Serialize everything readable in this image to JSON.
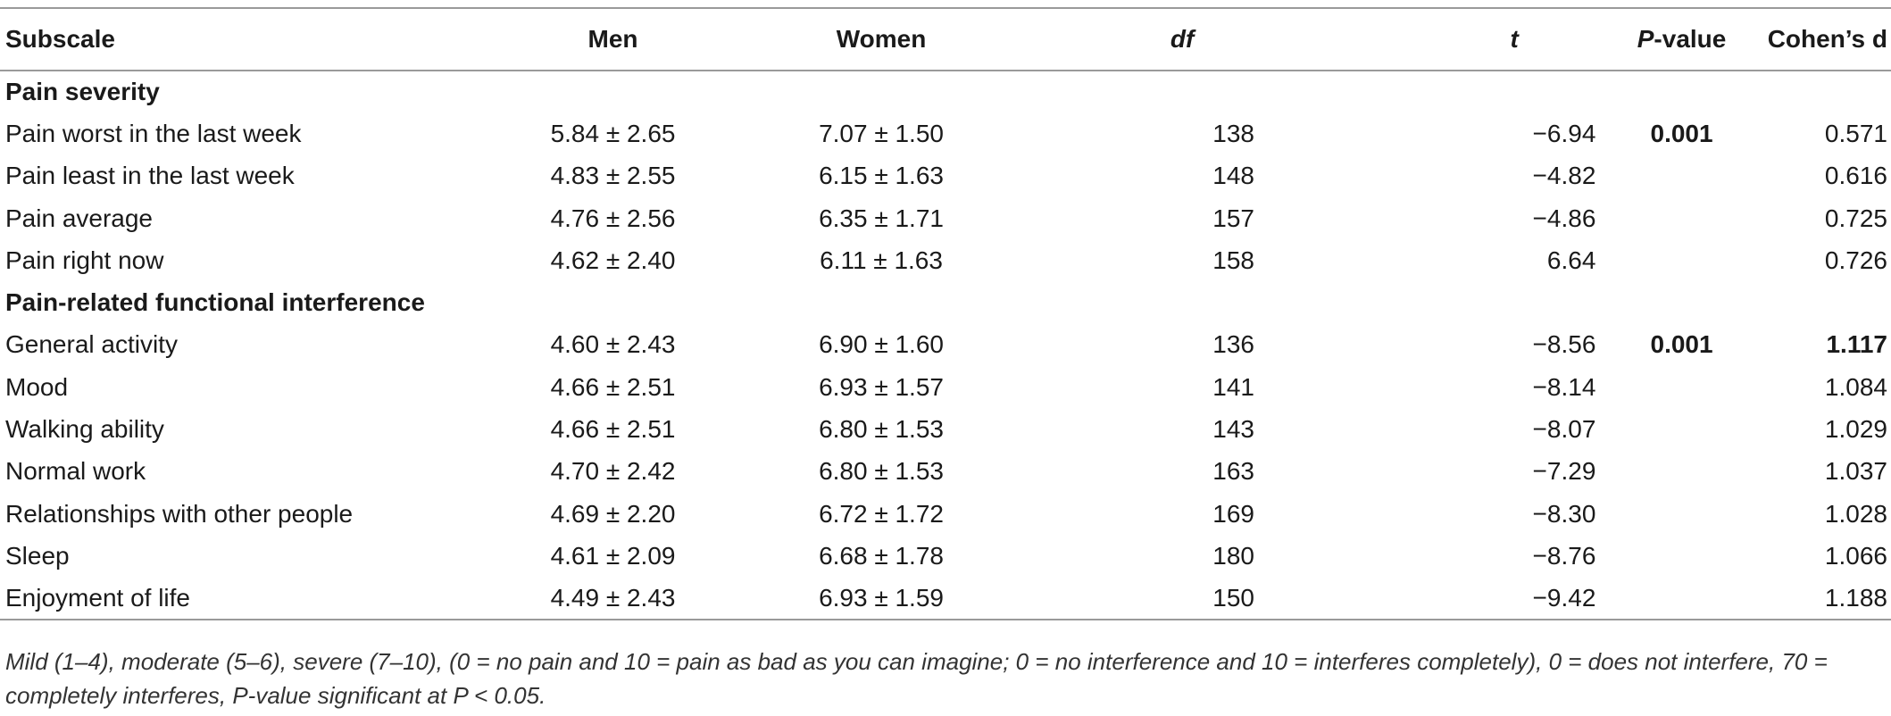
{
  "headers": {
    "subscale": "Subscale",
    "men": "Men",
    "women": "Women",
    "df": "df",
    "t": "t",
    "p_italic": "P",
    "p_rest": "-value",
    "cohens_d": "Cohen’s d"
  },
  "sections": [
    {
      "title": "Pain severity",
      "rows": [
        {
          "subscale": "Pain worst in the last week",
          "men": "5.84 ± 2.65",
          "women": "7.07 ± 1.50",
          "df": "138",
          "t": "−6.94",
          "p": "0.001",
          "d": "0.571"
        },
        {
          "subscale": "Pain least in the last week",
          "men": "4.83 ± 2.55",
          "women": "6.15 ± 1.63",
          "df": "148",
          "t": "−4.82",
          "p": "",
          "d": "0.616"
        },
        {
          "subscale": "Pain average",
          "men": "4.76 ± 2.56",
          "women": "6.35 ± 1.71",
          "df": "157",
          "t": "−4.86",
          "p": "",
          "d": "0.725"
        },
        {
          "subscale": "Pain right now",
          "men": "4.62 ± 2.40",
          "women": "6.11 ± 1.63",
          "df": "158",
          "t": "6.64",
          "p": "",
          "d": "0.726"
        }
      ]
    },
    {
      "title": "Pain-related functional interference",
      "rows": [
        {
          "subscale": "General activity",
          "men": "4.60 ± 2.43",
          "women": "6.90 ± 1.60",
          "df": "136",
          "t": "−8.56",
          "p": "0.001",
          "d": "1.117"
        },
        {
          "subscale": "Mood",
          "men": "4.66 ± 2.51",
          "women": "6.93 ± 1.57",
          "df": "141",
          "t": "−8.14",
          "p": "",
          "d": "1.084"
        },
        {
          "subscale": "Walking ability",
          "men": "4.66 ± 2.51",
          "women": "6.80 ± 1.53",
          "df": "143",
          "t": "−8.07",
          "p": "",
          "d": "1.029"
        },
        {
          "subscale": "Normal work",
          "men": "4.70 ± 2.42",
          "women": "6.80 ± 1.53",
          "df": "163",
          "t": "−7.29",
          "p": "",
          "d": "1.037"
        },
        {
          "subscale": "Relationships with other people",
          "men": "4.69 ± 2.20",
          "women": "6.72 ± 1.72",
          "df": "169",
          "t": "−8.30",
          "p": "",
          "d": "1.028"
        },
        {
          "subscale": "Sleep",
          "men": "4.61 ± 2.09",
          "women": "6.68 ± 1.78",
          "df": "180",
          "t": "−8.76",
          "p": "",
          "d": "1.066"
        },
        {
          "subscale": "Enjoyment of life",
          "men": "4.49 ± 2.43",
          "women": "6.93 ± 1.59",
          "df": "150",
          "t": "−9.42",
          "p": "",
          "d": "1.188"
        }
      ]
    }
  ],
  "note": "Mild (1–4), moderate (5–6), severe (7–10), (0 = no pain and 10 = pain as bad as you can imagine; 0 = no interference and 10 = interferes completely), 0 = does not interfere, 70 = completely interferes, P-value significant at P < 0.05."
}
